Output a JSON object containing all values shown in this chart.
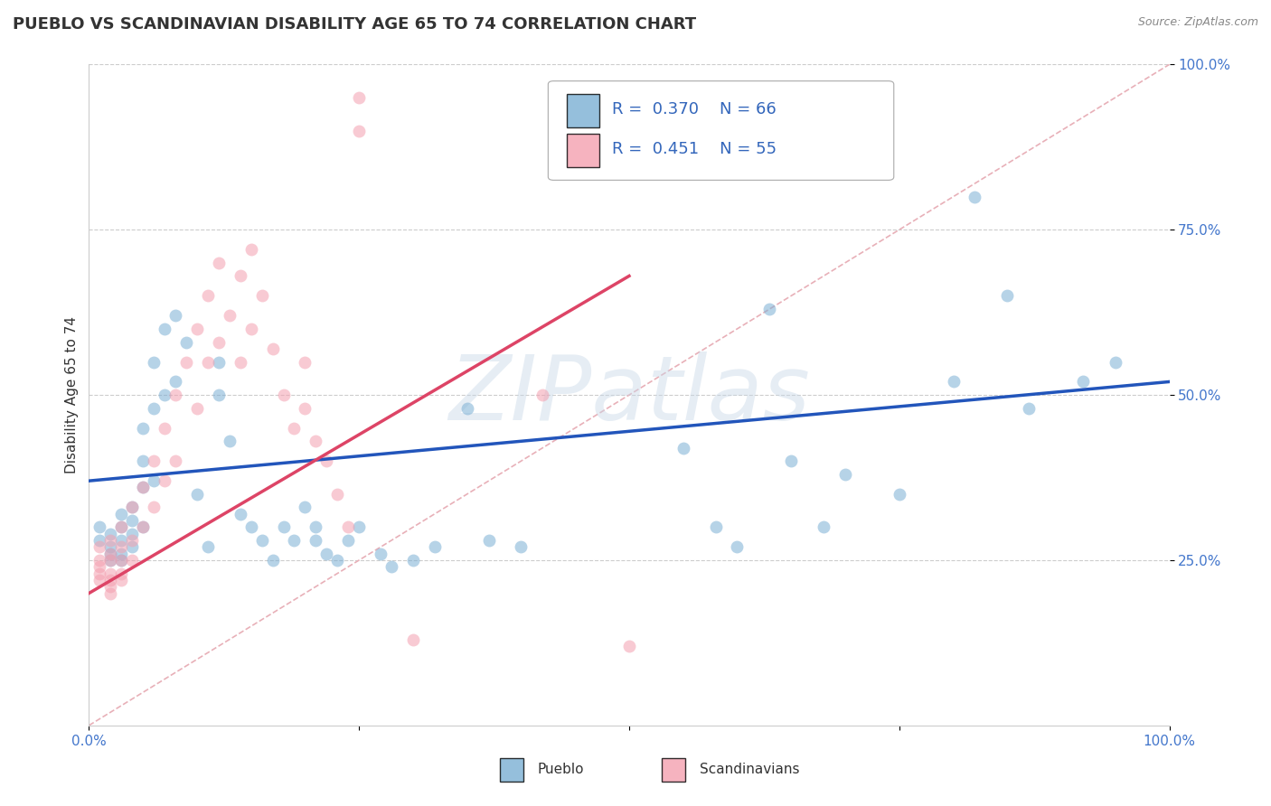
{
  "title": "PUEBLO VS SCANDINAVIAN DISABILITY AGE 65 TO 74 CORRELATION CHART",
  "source": "Source: ZipAtlas.com",
  "ylabel": "Disability Age 65 to 74",
  "xlim": [
    0.0,
    1.0
  ],
  "ylim": [
    0.0,
    1.0
  ],
  "ytick_labels": [
    "25.0%",
    "50.0%",
    "75.0%",
    "100.0%"
  ],
  "ytick_positions": [
    0.25,
    0.5,
    0.75,
    1.0
  ],
  "pueblo_color": "#7BAFD4",
  "scandinavian_color": "#F4A0B0",
  "pueblo_line_color": "#2255BB",
  "scandinavian_line_color": "#DD4466",
  "pueblo_R": 0.37,
  "pueblo_N": 66,
  "scandinavian_R": 0.451,
  "scandinavian_N": 55,
  "background_color": "#ffffff",
  "grid_color": "#cccccc",
  "pueblo_points": [
    [
      0.01,
      0.3
    ],
    [
      0.01,
      0.28
    ],
    [
      0.02,
      0.29
    ],
    [
      0.02,
      0.27
    ],
    [
      0.02,
      0.26
    ],
    [
      0.02,
      0.25
    ],
    [
      0.03,
      0.32
    ],
    [
      0.03,
      0.3
    ],
    [
      0.03,
      0.28
    ],
    [
      0.03,
      0.26
    ],
    [
      0.03,
      0.25
    ],
    [
      0.04,
      0.33
    ],
    [
      0.04,
      0.31
    ],
    [
      0.04,
      0.29
    ],
    [
      0.04,
      0.27
    ],
    [
      0.05,
      0.45
    ],
    [
      0.05,
      0.4
    ],
    [
      0.05,
      0.36
    ],
    [
      0.05,
      0.3
    ],
    [
      0.06,
      0.55
    ],
    [
      0.06,
      0.48
    ],
    [
      0.06,
      0.37
    ],
    [
      0.07,
      0.6
    ],
    [
      0.07,
      0.5
    ],
    [
      0.08,
      0.62
    ],
    [
      0.08,
      0.52
    ],
    [
      0.09,
      0.58
    ],
    [
      0.1,
      0.35
    ],
    [
      0.11,
      0.27
    ],
    [
      0.12,
      0.55
    ],
    [
      0.12,
      0.5
    ],
    [
      0.13,
      0.43
    ],
    [
      0.14,
      0.32
    ],
    [
      0.15,
      0.3
    ],
    [
      0.16,
      0.28
    ],
    [
      0.17,
      0.25
    ],
    [
      0.18,
      0.3
    ],
    [
      0.19,
      0.28
    ],
    [
      0.2,
      0.33
    ],
    [
      0.21,
      0.3
    ],
    [
      0.21,
      0.28
    ],
    [
      0.22,
      0.26
    ],
    [
      0.23,
      0.25
    ],
    [
      0.24,
      0.28
    ],
    [
      0.25,
      0.3
    ],
    [
      0.27,
      0.26
    ],
    [
      0.28,
      0.24
    ],
    [
      0.3,
      0.25
    ],
    [
      0.32,
      0.27
    ],
    [
      0.35,
      0.48
    ],
    [
      0.37,
      0.28
    ],
    [
      0.4,
      0.27
    ],
    [
      0.55,
      0.42
    ],
    [
      0.58,
      0.3
    ],
    [
      0.6,
      0.27
    ],
    [
      0.63,
      0.63
    ],
    [
      0.65,
      0.4
    ],
    [
      0.68,
      0.3
    ],
    [
      0.7,
      0.38
    ],
    [
      0.75,
      0.35
    ],
    [
      0.8,
      0.52
    ],
    [
      0.82,
      0.8
    ],
    [
      0.85,
      0.65
    ],
    [
      0.87,
      0.48
    ],
    [
      0.92,
      0.52
    ],
    [
      0.95,
      0.55
    ]
  ],
  "scandinavian_points": [
    [
      0.01,
      0.27
    ],
    [
      0.01,
      0.25
    ],
    [
      0.01,
      0.24
    ],
    [
      0.01,
      0.23
    ],
    [
      0.01,
      0.22
    ],
    [
      0.02,
      0.28
    ],
    [
      0.02,
      0.26
    ],
    [
      0.02,
      0.25
    ],
    [
      0.02,
      0.23
    ],
    [
      0.02,
      0.22
    ],
    [
      0.02,
      0.21
    ],
    [
      0.02,
      0.2
    ],
    [
      0.03,
      0.3
    ],
    [
      0.03,
      0.27
    ],
    [
      0.03,
      0.25
    ],
    [
      0.03,
      0.23
    ],
    [
      0.03,
      0.22
    ],
    [
      0.04,
      0.33
    ],
    [
      0.04,
      0.28
    ],
    [
      0.04,
      0.25
    ],
    [
      0.05,
      0.36
    ],
    [
      0.05,
      0.3
    ],
    [
      0.06,
      0.4
    ],
    [
      0.06,
      0.33
    ],
    [
      0.07,
      0.45
    ],
    [
      0.07,
      0.37
    ],
    [
      0.08,
      0.5
    ],
    [
      0.08,
      0.4
    ],
    [
      0.09,
      0.55
    ],
    [
      0.1,
      0.6
    ],
    [
      0.1,
      0.48
    ],
    [
      0.11,
      0.65
    ],
    [
      0.11,
      0.55
    ],
    [
      0.12,
      0.7
    ],
    [
      0.12,
      0.58
    ],
    [
      0.13,
      0.62
    ],
    [
      0.14,
      0.68
    ],
    [
      0.14,
      0.55
    ],
    [
      0.15,
      0.72
    ],
    [
      0.15,
      0.6
    ],
    [
      0.16,
      0.65
    ],
    [
      0.17,
      0.57
    ],
    [
      0.18,
      0.5
    ],
    [
      0.19,
      0.45
    ],
    [
      0.2,
      0.55
    ],
    [
      0.2,
      0.48
    ],
    [
      0.21,
      0.43
    ],
    [
      0.22,
      0.4
    ],
    [
      0.23,
      0.35
    ],
    [
      0.24,
      0.3
    ],
    [
      0.25,
      0.95
    ],
    [
      0.25,
      0.9
    ],
    [
      0.3,
      0.13
    ],
    [
      0.42,
      0.5
    ],
    [
      0.5,
      0.12
    ]
  ],
  "diag_color": "#E8B0B8",
  "title_fontsize": 13,
  "label_fontsize": 11,
  "tick_fontsize": 11,
  "legend_fontsize": 13,
  "marker_size": 100,
  "marker_alpha": 0.55,
  "watermark_text": "ZIPatlas",
  "watermark_color": "#c8d8e8",
  "watermark_fontsize": 72,
  "watermark_alpha": 0.45
}
